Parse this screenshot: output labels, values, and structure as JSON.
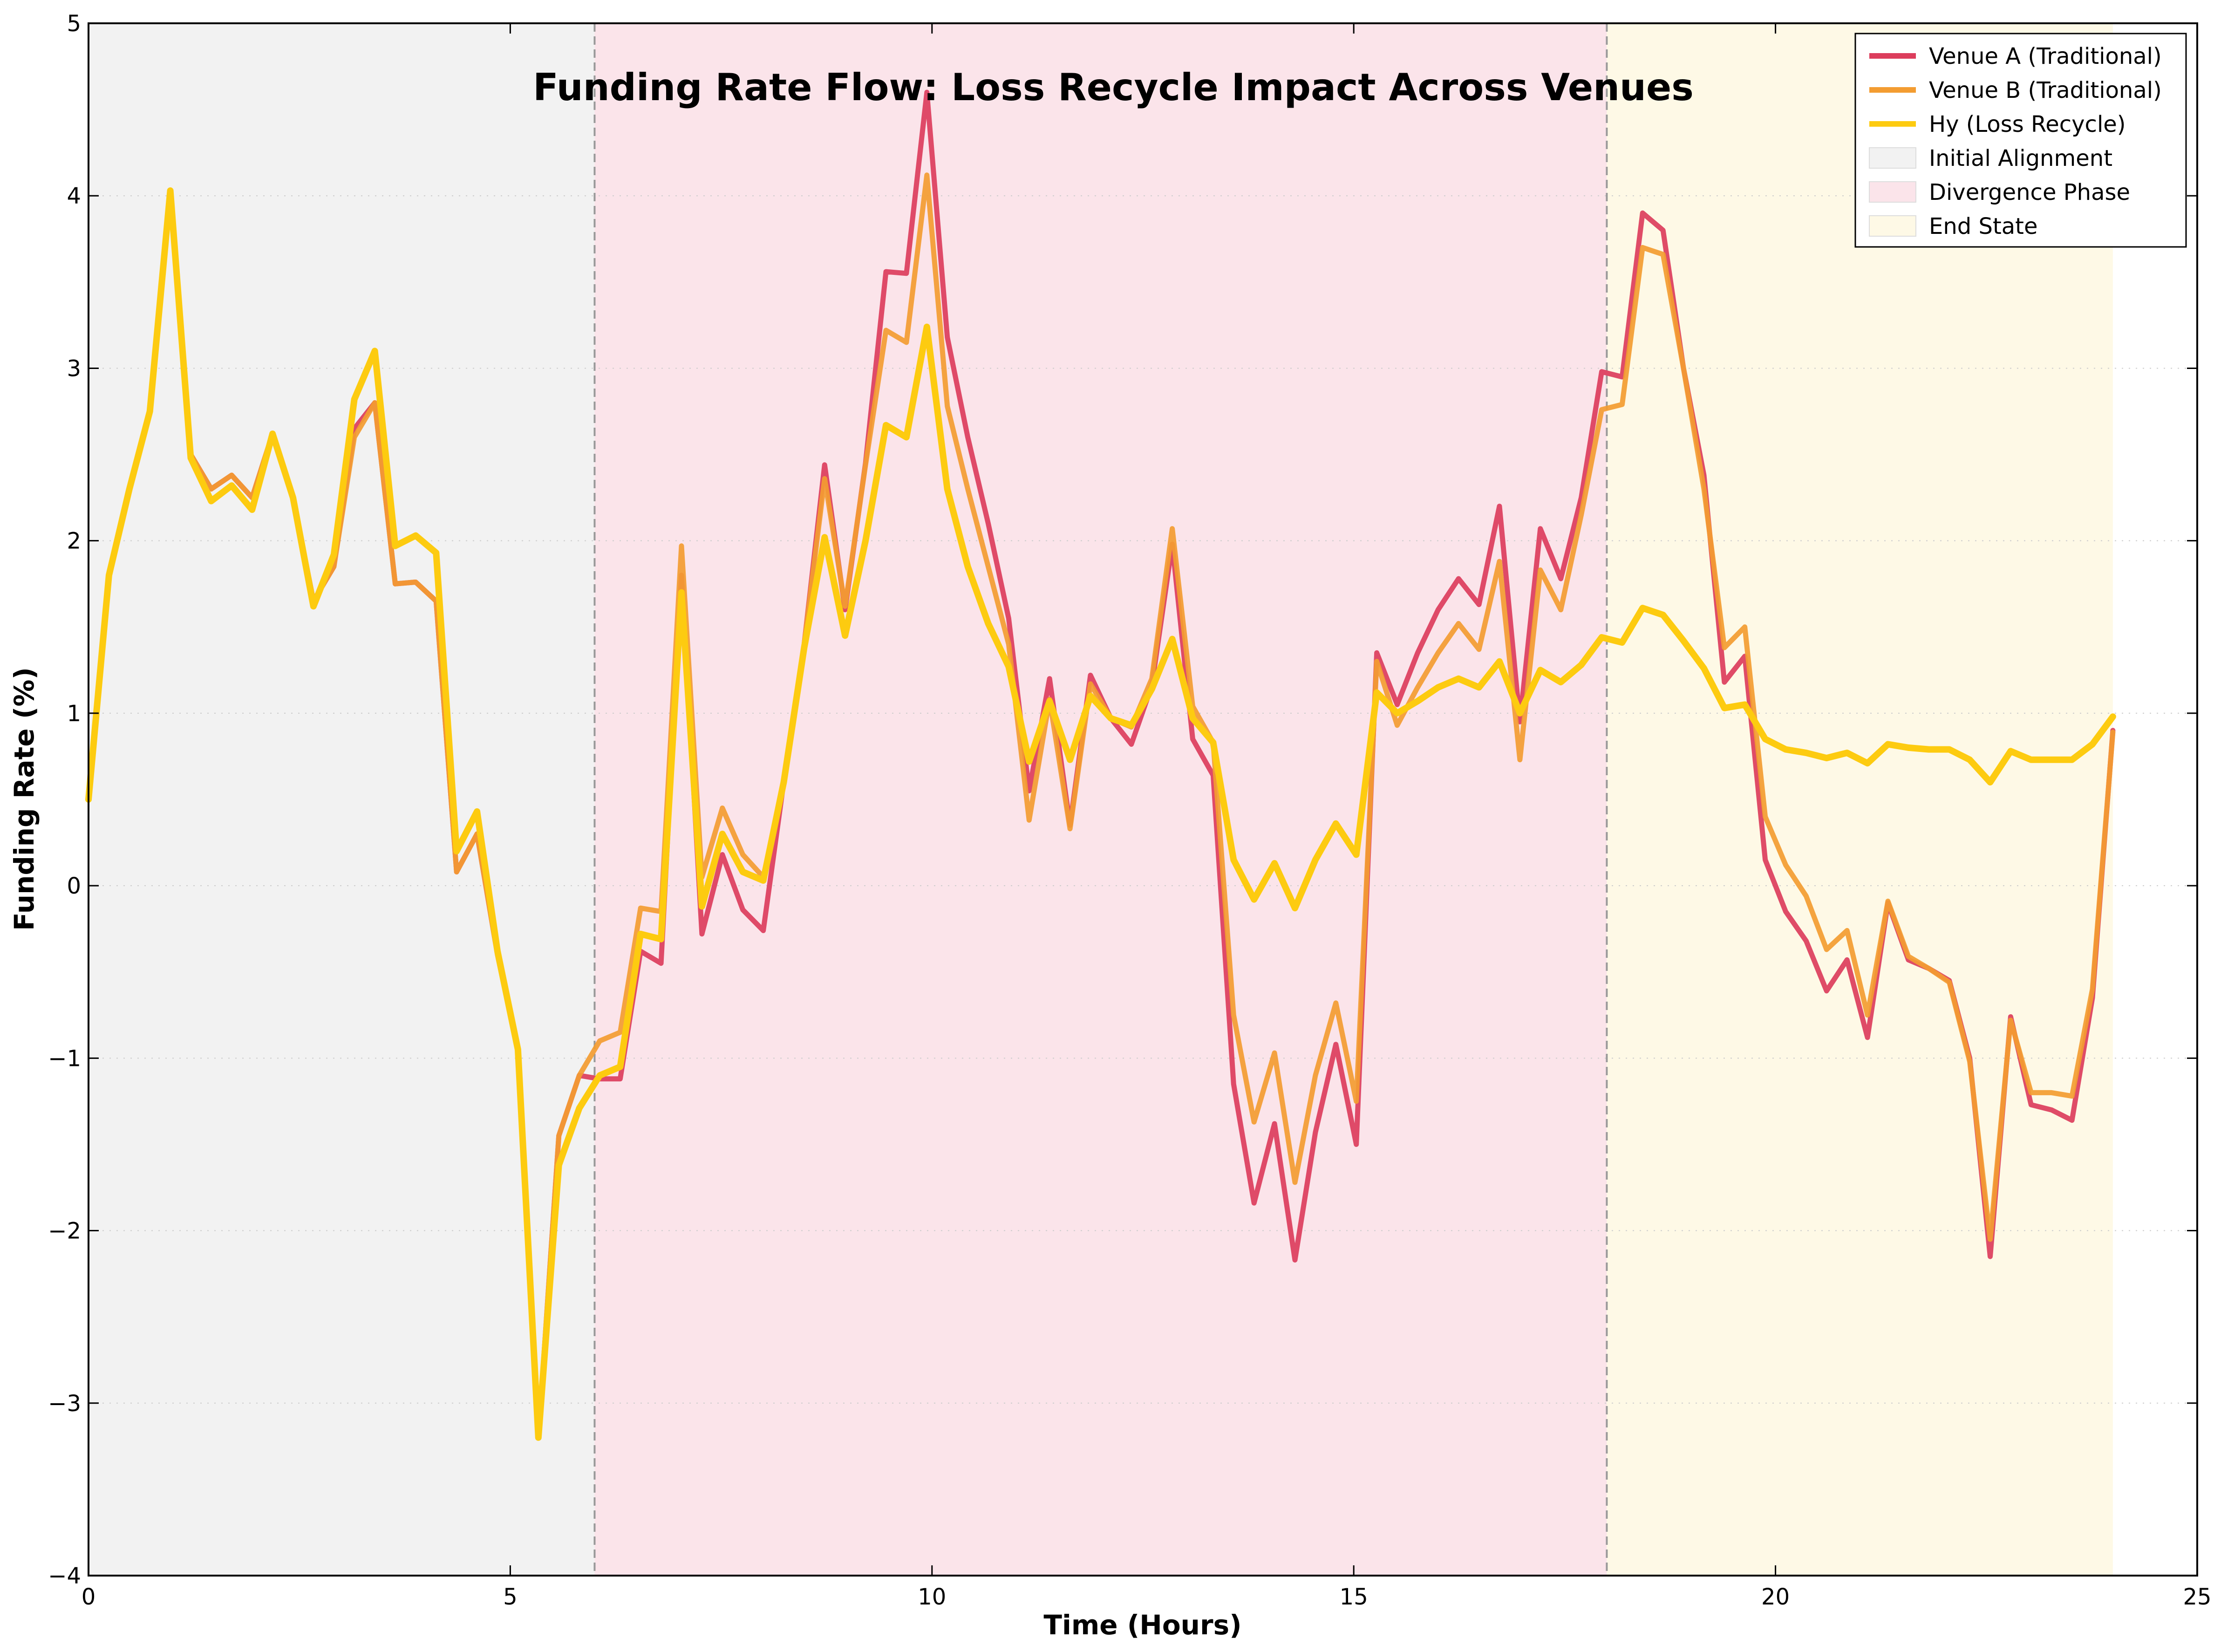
{
  "chart_data": {
    "type": "line",
    "title": "Funding Rate Flow: Loss Recycle Impact Across Venues",
    "xlabel": "Time (Hours)",
    "ylabel": "Funding Rate (%)",
    "xlim": [
      0,
      25
    ],
    "ylim": [
      -4,
      5
    ],
    "xticks": [
      0,
      5,
      10,
      15,
      20,
      25
    ],
    "yticks": [
      -4,
      -3,
      -2,
      -1,
      0,
      1,
      2,
      3,
      4,
      5
    ],
    "xtick_labels": [
      "0",
      "5",
      "10",
      "15",
      "20",
      "25"
    ],
    "ytick_labels": [
      "−4",
      "−3",
      "−2",
      "−1",
      "0",
      "1",
      "2",
      "3",
      "4",
      "5"
    ],
    "grid": "y-dotted",
    "legend_position": "top-right",
    "phases": [
      {
        "name": "Initial Alignment",
        "x_start": 0,
        "x_end": 6,
        "color": "#f2f2f2"
      },
      {
        "name": "Divergence Phase",
        "x_start": 6,
        "x_end": 18,
        "color": "#fbe4ea"
      },
      {
        "name": "End State",
        "x_start": 18,
        "x_end": 24,
        "color": "#fef9e6"
      }
    ],
    "phase_boundaries": [
      6,
      18
    ],
    "x_start": 0,
    "x_step": 0.242424,
    "series": [
      {
        "name": "Venue A (Traditional)",
        "color": "#dc3d5c",
        "values": [
          0.5,
          1.8,
          2.3,
          2.75,
          4.0,
          2.5,
          2.3,
          2.38,
          2.25,
          2.62,
          2.25,
          1.65,
          1.85,
          2.65,
          2.8,
          1.75,
          1.76,
          1.65,
          0.08,
          0.3,
          -0.4,
          -0.95,
          -3.2,
          -1.45,
          -1.1,
          -1.12,
          -1.12,
          -0.38,
          -0.45,
          1.8,
          -0.28,
          0.18,
          -0.14,
          -0.26,
          0.6,
          1.4,
          2.44,
          1.6,
          2.45,
          3.56,
          3.55,
          4.6,
          3.18,
          2.6,
          2.1,
          1.55,
          0.55,
          1.2,
          0.35,
          1.22,
          0.97,
          0.82,
          1.16,
          1.98,
          0.85,
          0.64,
          -1.15,
          -1.84,
          -1.38,
          -2.17,
          -1.43,
          -0.92,
          -1.5,
          1.35,
          1.05,
          1.35,
          1.6,
          1.78,
          1.63,
          2.2,
          0.95,
          2.07,
          1.78,
          2.25,
          2.98,
          2.95,
          3.9,
          3.8,
          3.0,
          2.38,
          1.18,
          1.33,
          0.15,
          -0.15,
          -0.32,
          -0.61,
          -0.43,
          -0.88,
          -0.1,
          -0.43,
          -0.48,
          -0.55,
          -1.0,
          -2.15,
          -0.76,
          -1.27,
          -1.3,
          -1.36,
          -0.65,
          0.9
        ]
      },
      {
        "name": "Venue B (Traditional)",
        "color": "#f39c31",
        "values": [
          0.5,
          1.8,
          2.3,
          2.75,
          4.0,
          2.5,
          2.3,
          2.38,
          2.25,
          2.62,
          2.25,
          1.65,
          1.85,
          2.6,
          2.8,
          1.75,
          1.76,
          1.65,
          0.08,
          0.3,
          -0.4,
          -0.95,
          -3.2,
          -1.45,
          -1.1,
          -0.9,
          -0.85,
          -0.13,
          -0.15,
          1.97,
          0.05,
          0.45,
          0.18,
          0.05,
          0.6,
          1.4,
          2.36,
          1.62,
          2.44,
          3.22,
          3.15,
          4.12,
          2.78,
          2.3,
          1.85,
          1.4,
          0.38,
          1.08,
          0.33,
          1.17,
          0.97,
          0.92,
          1.2,
          2.07,
          1.04,
          0.83,
          -0.75,
          -1.37,
          -0.97,
          -1.72,
          -1.1,
          -0.68,
          -1.25,
          1.3,
          0.93,
          1.15,
          1.35,
          1.52,
          1.37,
          1.88,
          0.73,
          1.83,
          1.6,
          2.15,
          2.76,
          2.79,
          3.7,
          3.66,
          3.0,
          2.3,
          1.38,
          1.5,
          0.4,
          0.12,
          -0.06,
          -0.37,
          -0.26,
          -0.75,
          -0.09,
          -0.41,
          -0.48,
          -0.56,
          -1.02,
          -2.05,
          -0.78,
          -1.2,
          -1.2,
          -1.22,
          -0.6,
          0.89
        ]
      },
      {
        "name": "Hy (Loss Recycle)",
        "color": "#fdcb10",
        "values": [
          0.5,
          1.8,
          2.3,
          2.75,
          4.03,
          2.48,
          2.23,
          2.32,
          2.18,
          2.62,
          2.25,
          1.62,
          1.92,
          2.82,
          3.1,
          1.97,
          2.03,
          1.93,
          0.2,
          0.43,
          -0.38,
          -0.95,
          -3.2,
          -1.62,
          -1.29,
          -1.1,
          -1.05,
          -0.28,
          -0.31,
          1.7,
          -0.12,
          0.3,
          0.08,
          0.03,
          0.6,
          1.38,
          2.02,
          1.45,
          2.0,
          2.67,
          2.6,
          3.24,
          2.3,
          1.85,
          1.52,
          1.27,
          0.72,
          1.07,
          0.73,
          1.1,
          0.97,
          0.93,
          1.14,
          1.43,
          0.97,
          0.83,
          0.15,
          -0.08,
          0.13,
          -0.13,
          0.15,
          0.36,
          0.18,
          1.12,
          1.0,
          1.07,
          1.15,
          1.2,
          1.15,
          1.3,
          1.0,
          1.25,
          1.18,
          1.28,
          1.44,
          1.41,
          1.61,
          1.57,
          1.42,
          1.26,
          1.03,
          1.05,
          0.85,
          0.79,
          0.77,
          0.74,
          0.77,
          0.71,
          0.82,
          0.8,
          0.79,
          0.79,
          0.73,
          0.6,
          0.78,
          0.73,
          0.73,
          0.73,
          0.82,
          0.98
        ]
      }
    ]
  }
}
